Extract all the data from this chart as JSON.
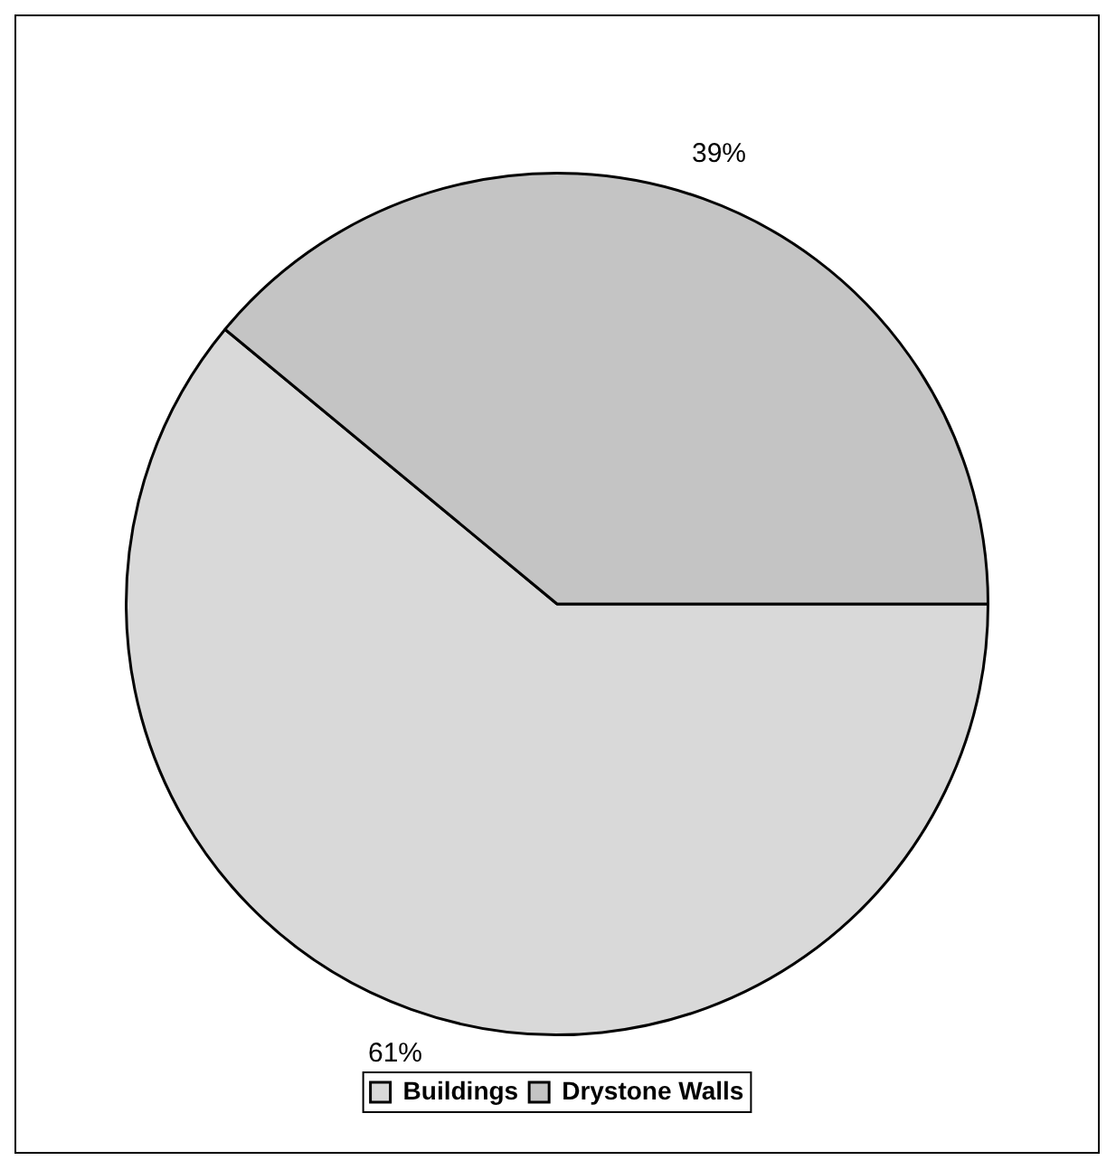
{
  "chart_data": {
    "type": "pie",
    "categories": [
      "Buildings",
      "Drystone Walls"
    ],
    "values": [
      61,
      39
    ],
    "colors": [
      "#d9d9d9",
      "#c4c4c4"
    ],
    "value_labels": [
      "61%",
      "39%"
    ],
    "legend": "bottom"
  }
}
